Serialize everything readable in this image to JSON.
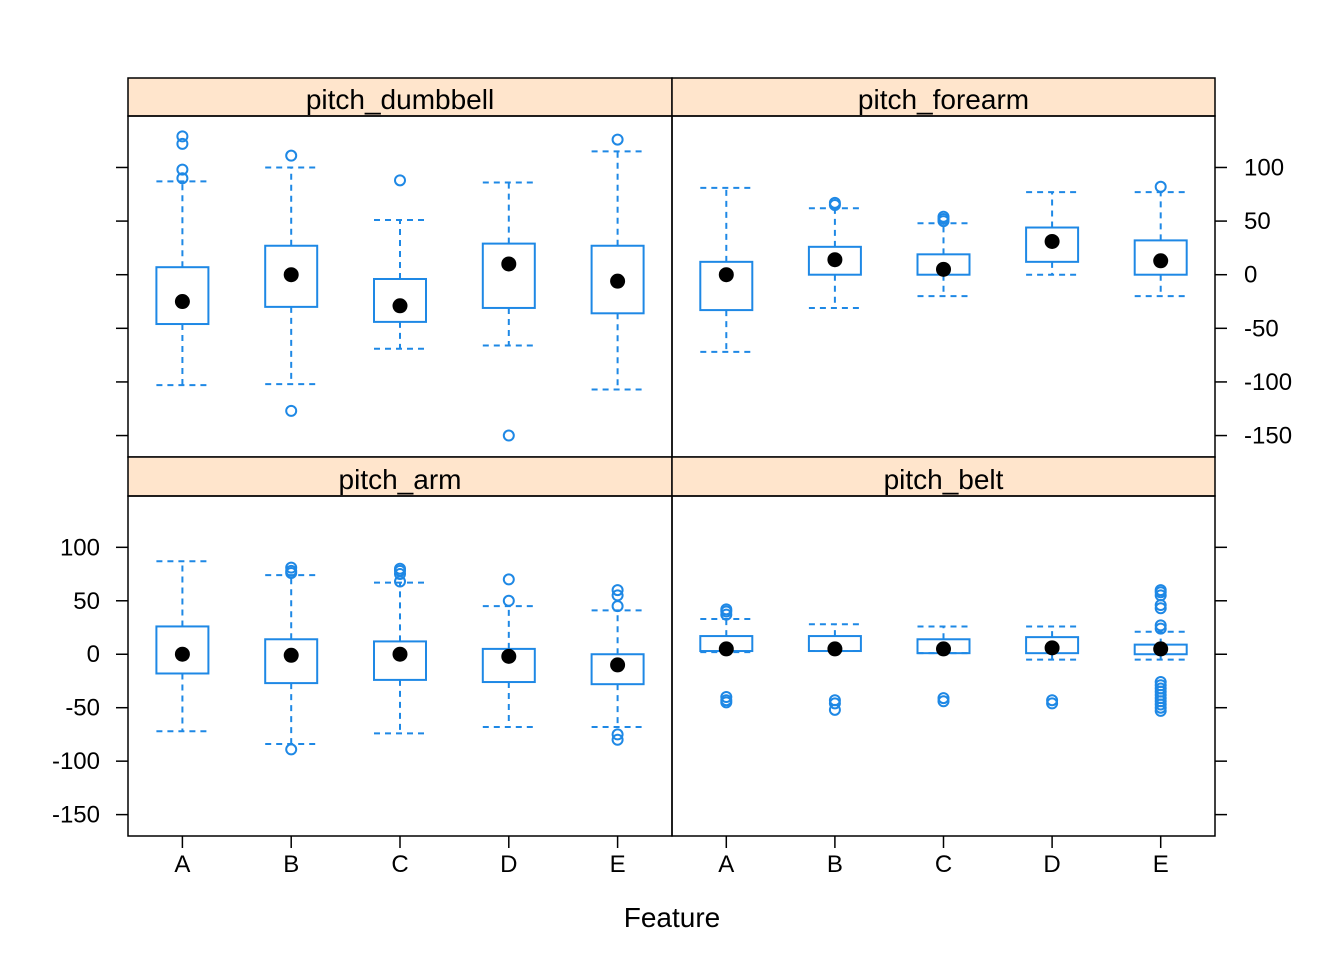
{
  "chart_data": {
    "type": "box",
    "layout": "lattice 2x2",
    "xlabel": "Feature",
    "ylabel": "",
    "ylim": [
      -170,
      148
    ],
    "yticks": [
      -150,
      -100,
      -50,
      0,
      50,
      100
    ],
    "categories": [
      "A",
      "B",
      "C",
      "D",
      "E"
    ],
    "colors": {
      "box": "#1e88e5",
      "median": "#000000",
      "strip": "#ffe5cc",
      "frame": "#000000"
    },
    "panels": [
      {
        "name": "pitch_dumbbell",
        "boxes": [
          {
            "category": "A",
            "lower": -103,
            "q1": -46,
            "median": -25,
            "q3": 7,
            "upper": 87,
            "outliers": [
              90,
              98,
              122,
              129
            ]
          },
          {
            "category": "B",
            "lower": -102,
            "q1": -30,
            "median": 0,
            "q3": 27,
            "upper": 100,
            "outliers": [
              111,
              -127
            ]
          },
          {
            "category": "C",
            "lower": -69,
            "q1": -44,
            "median": -29,
            "q3": -4,
            "upper": 51,
            "outliers": [
              88
            ]
          },
          {
            "category": "D",
            "lower": -66,
            "q1": -31,
            "median": 10,
            "q3": 29,
            "upper": 86,
            "outliers": [
              -150
            ]
          },
          {
            "category": "E",
            "lower": -107,
            "q1": -36,
            "median": -6,
            "q3": 27,
            "upper": 115,
            "outliers": [
              126
            ]
          }
        ]
      },
      {
        "name": "pitch_forearm",
        "boxes": [
          {
            "category": "A",
            "lower": -72,
            "q1": -33,
            "median": 0,
            "q3": 12,
            "upper": 81,
            "outliers": []
          },
          {
            "category": "B",
            "lower": -31,
            "q1": 0,
            "median": 14,
            "q3": 26,
            "upper": 62,
            "outliers": [
              65,
              67
            ]
          },
          {
            "category": "C",
            "lower": -20,
            "q1": 0,
            "median": 5,
            "q3": 19,
            "upper": 48,
            "outliers": [
              50,
              52,
              54
            ]
          },
          {
            "category": "D",
            "lower": 0,
            "q1": 12,
            "median": 31,
            "q3": 44,
            "upper": 77,
            "outliers": []
          },
          {
            "category": "E",
            "lower": -20,
            "q1": 0,
            "median": 13,
            "q3": 32,
            "upper": 77,
            "outliers": [
              82
            ]
          }
        ]
      },
      {
        "name": "pitch_arm",
        "boxes": [
          {
            "category": "A",
            "lower": -72,
            "q1": -18,
            "median": 0,
            "q3": 26,
            "upper": 87,
            "outliers": []
          },
          {
            "category": "B",
            "lower": -84,
            "q1": -27,
            "median": -1,
            "q3": 14,
            "upper": 74,
            "outliers": [
              76,
              78,
              81,
              -89
            ]
          },
          {
            "category": "C",
            "lower": -74,
            "q1": -24,
            "median": 0,
            "q3": 12,
            "upper": 67,
            "outliers": [
              68,
              75,
              78,
              80
            ]
          },
          {
            "category": "D",
            "lower": -68,
            "q1": -26,
            "median": -2,
            "q3": 5,
            "upper": 45,
            "outliers": [
              50,
              70
            ]
          },
          {
            "category": "E",
            "lower": -68,
            "q1": -28,
            "median": -10,
            "q3": 0,
            "upper": 41,
            "outliers": [
              45,
              55,
              60,
              -75,
              -80
            ]
          }
        ]
      },
      {
        "name": "pitch_belt",
        "boxes": [
          {
            "category": "A",
            "lower": 2,
            "q1": 3,
            "median": 5,
            "q3": 17,
            "upper": 33,
            "outliers": [
              37,
              40,
              42,
              -40,
              -43,
              -45
            ]
          },
          {
            "category": "B",
            "lower": 3,
            "q1": 3,
            "median": 5,
            "q3": 17,
            "upper": 28,
            "outliers": [
              -43,
              -46,
              -52
            ]
          },
          {
            "category": "C",
            "lower": 1,
            "q1": 1,
            "median": 5,
            "q3": 14,
            "upper": 26,
            "outliers": [
              -41,
              -44
            ]
          },
          {
            "category": "D",
            "lower": -5,
            "q1": 1,
            "median": 6,
            "q3": 16,
            "upper": 26,
            "outliers": [
              -43,
              -46
            ]
          },
          {
            "category": "E",
            "lower": -5,
            "q1": 0,
            "median": 5,
            "q3": 9,
            "upper": 21,
            "outliers": [
              24,
              27,
              43,
              46,
              55,
              58,
              60,
              -26,
              -29,
              -32,
              -35,
              -38,
              -41,
              -44,
              -47,
              -50,
              -53
            ]
          }
        ]
      }
    ]
  }
}
